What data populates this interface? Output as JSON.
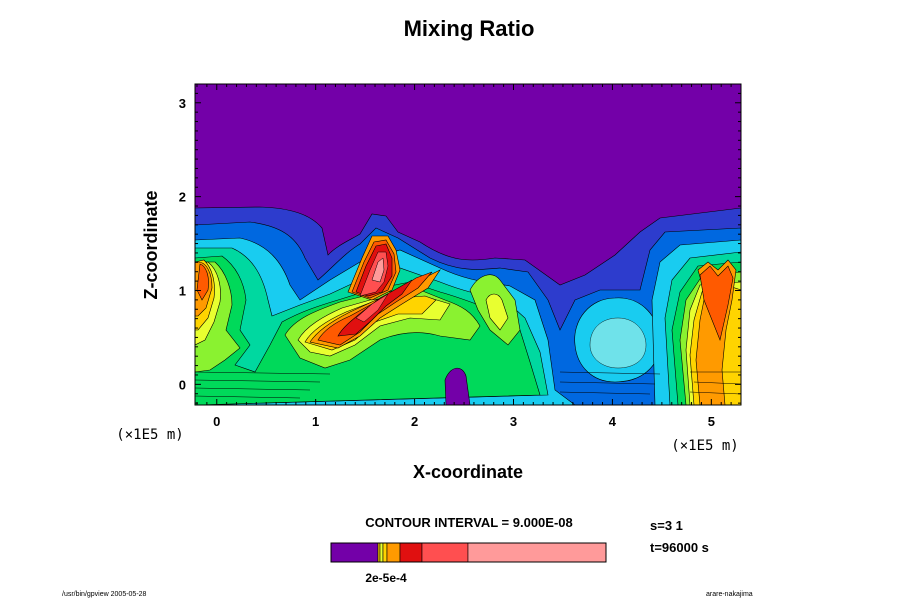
{
  "chart_data": {
    "type": "heatmap",
    "title": "Mixing Ratio",
    "xlabel": "X-coordinate",
    "ylabel": "Z-coordinate",
    "x_unit": "(×1E5 m)",
    "z_unit": "(×1E5 m)",
    "xlim": [
      -0.22,
      5.3
    ],
    "ylim": [
      -0.22,
      3.2
    ],
    "x_ticks": [
      "0",
      "1",
      "2",
      "3",
      "4",
      "5"
    ],
    "y_ticks": [
      "0",
      "1",
      "2",
      "3"
    ],
    "contour_interval": "CONTOUR INTERVAL = 9.000E-08",
    "colorbar_label": "2e-5e-4",
    "colors": {
      "background_level": "#7300a8",
      "levels": [
        "#2d3ccd",
        "#0068e0",
        "#009fff",
        "#19ccf0",
        "#6fe2ea",
        "#00d8a0",
        "#00d95a",
        "#8af230",
        "#e8ff30",
        "#ffd400",
        "#ff9a00",
        "#ff5a00",
        "#e01010",
        "#ff4f50",
        "#ff9a9a"
      ]
    }
  },
  "info": {
    "step": "s=3 1",
    "time": "t=96000 s"
  },
  "footer": {
    "left": "/usr/bin/gpview 2005-05-28",
    "right": "arare-nakajima"
  }
}
